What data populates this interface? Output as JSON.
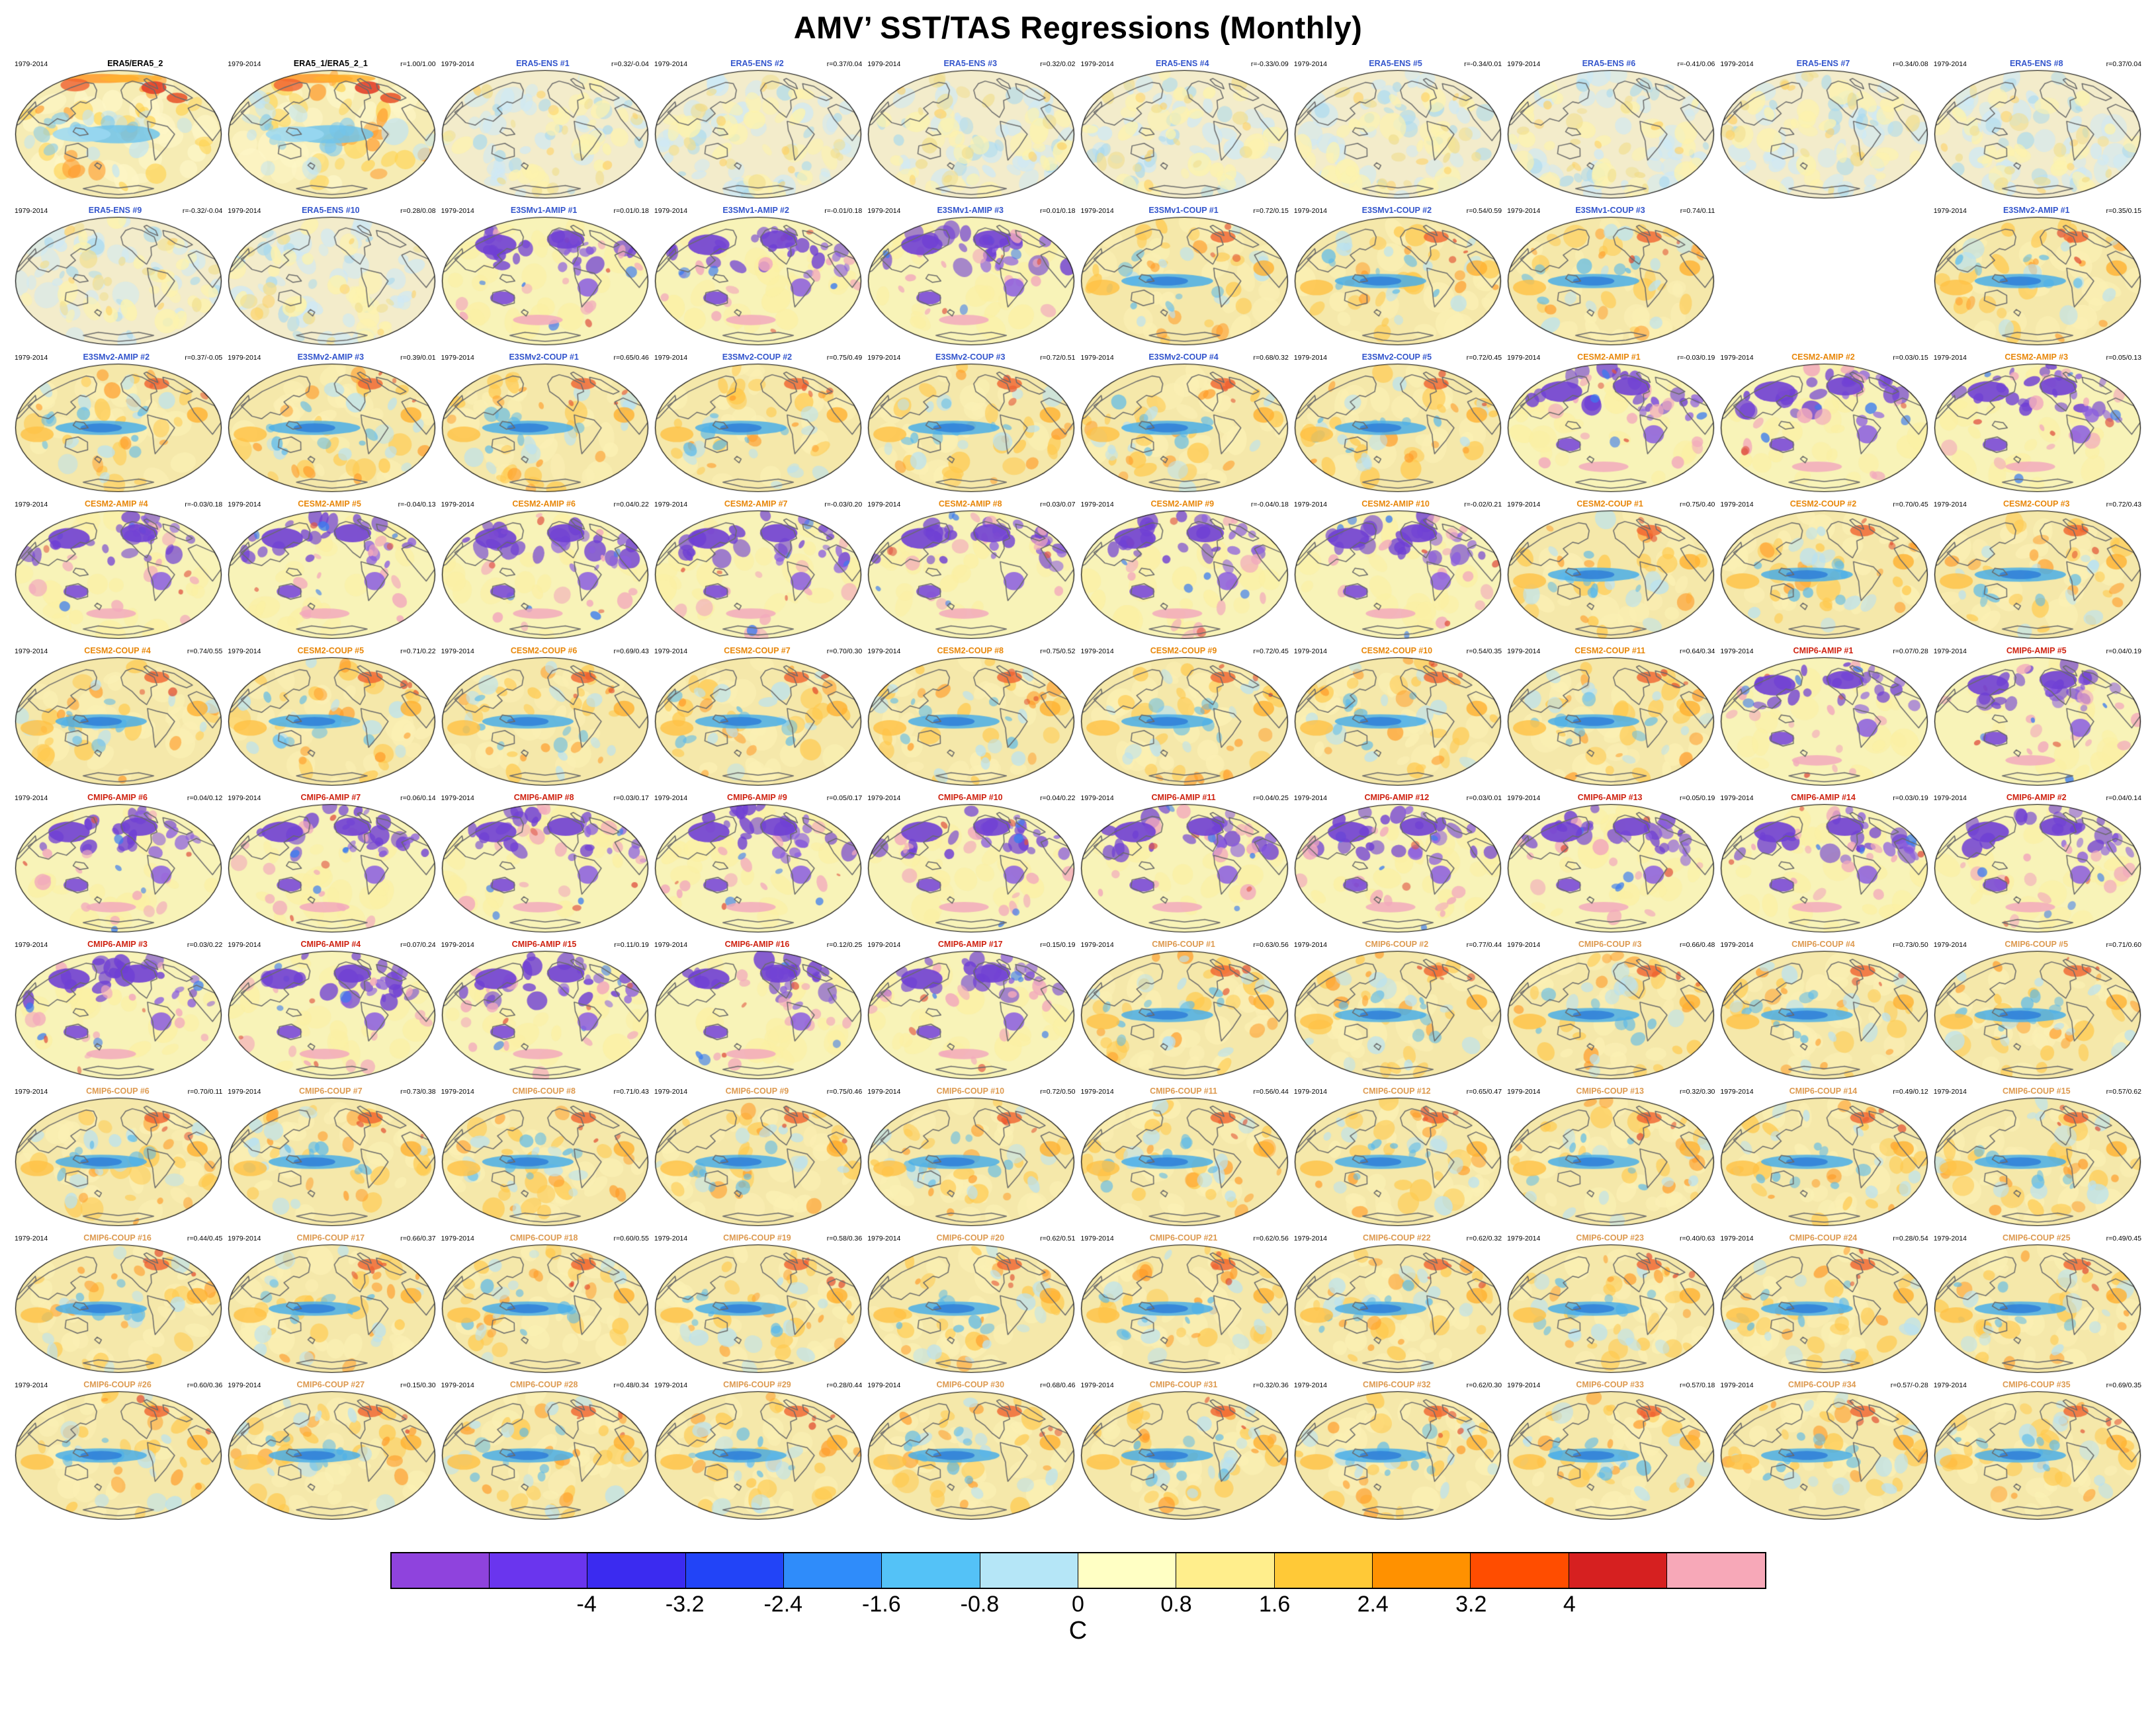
{
  "page_title": "AMV’ SST/TAS Regressions (Monthly)",
  "chart_data": {
    "type": "heatmap",
    "title": "AMV’ SST/TAS Regressions (Monthly)",
    "description": "10x10 grid of global AMV SST/TAS regression maps (Robinson projection), one panel per dataset/ensemble member; panel header shows period, dataset name and r=SST/TAS pattern correlations; shared colorbar in degrees C",
    "grid": {
      "rows": 10,
      "cols": 10
    },
    "years_label": "1979-2014",
    "colorbar": {
      "label": "C",
      "ticks": [
        "-4",
        "-3.2",
        "-2.4",
        "-1.6",
        "-0.8",
        "0",
        "0.8",
        "1.6",
        "2.4",
        "3.2",
        "4"
      ],
      "colors": [
        "#8f43dd",
        "#6a35ee",
        "#3b2bf0",
        "#2244f7",
        "#2f8cfa",
        "#54c2f7",
        "#b5e6f7",
        "#ffffc4",
        "#ffee8c",
        "#ffc937",
        "#ff9100",
        "#ff4d00",
        "#d62020",
        "#f7a8b8"
      ]
    },
    "group_colors": {
      "obs": "#000000",
      "ens": "#3355cc",
      "e3sm": "#3355cc",
      "cesm2": "#e8870a",
      "cmip6a": "#cf2210",
      "cmip6c": "#dd9a50"
    },
    "panels": [
      {
        "title": "ERA5/ERA5_2",
        "r": "",
        "group": "obs",
        "style": "obs"
      },
      {
        "title": "ERA5_1/ERA5_2_1",
        "r": "r=1.00/1.00",
        "group": "obs",
        "style": "obs"
      },
      {
        "title": "ERA5-ENS #1",
        "r": "r=0.32/-0.04",
        "group": "ens",
        "style": "ens"
      },
      {
        "title": "ERA5-ENS #2",
        "r": "r=0.37/0.04",
        "group": "ens",
        "style": "ens"
      },
      {
        "title": "ERA5-ENS #3",
        "r": "r=0.32/0.02",
        "group": "ens",
        "style": "ens"
      },
      {
        "title": "ERA5-ENS #4",
        "r": "r=-0.33/0.09",
        "group": "ens",
        "style": "ens"
      },
      {
        "title": "ERA5-ENS #5",
        "r": "r=-0.34/0.01",
        "group": "ens",
        "style": "ens"
      },
      {
        "title": "ERA5-ENS #6",
        "r": "r=-0.41/0.06",
        "group": "ens",
        "style": "ens"
      },
      {
        "title": "ERA5-ENS #7",
        "r": "r=0.34/0.08",
        "group": "ens",
        "style": "ens"
      },
      {
        "title": "ERA5-ENS #8",
        "r": "r=0.37/0.04",
        "group": "ens",
        "style": "ens"
      },
      {
        "title": "ERA5-ENS #9",
        "r": "r=-0.32/-0.04",
        "group": "ens",
        "style": "ens"
      },
      {
        "title": "ERA5-ENS #10",
        "r": "r=0.28/0.08",
        "group": "ens",
        "style": "ens"
      },
      {
        "title": "E3SMv1-AMIP #1",
        "r": "r=0.01/0.18",
        "group": "e3sm",
        "style": "amip"
      },
      {
        "title": "E3SMv1-AMIP #2",
        "r": "r=-0.01/0.18",
        "group": "e3sm",
        "style": "amip"
      },
      {
        "title": "E3SMv1-AMIP #3",
        "r": "r=0.01/0.18",
        "group": "e3sm",
        "style": "amip"
      },
      {
        "title": "E3SMv1-COUP #1",
        "r": "r=0.72/0.15",
        "group": "e3sm",
        "style": "coup"
      },
      {
        "title": "E3SMv1-COUP #2",
        "r": "r=0.54/0.59",
        "group": "e3sm",
        "style": "coup"
      },
      {
        "title": "E3SMv1-COUP #3",
        "r": "r=0.74/0.11",
        "group": "e3sm",
        "style": "coup"
      },
      null,
      {
        "title": "E3SMv2-AMIP #1",
        "r": "r=0.35/0.15",
        "group": "e3sm",
        "style": "coup"
      },
      {
        "title": "E3SMv2-AMIP #2",
        "r": "r=0.37/-0.05",
        "group": "e3sm",
        "style": "coup"
      },
      {
        "title": "E3SMv2-AMIP #3",
        "r": "r=0.39/0.01",
        "group": "e3sm",
        "style": "coup"
      },
      {
        "title": "E3SMv2-COUP #1",
        "r": "r=0.65/0.46",
        "group": "e3sm",
        "style": "coup"
      },
      {
        "title": "E3SMv2-COUP #2",
        "r": "r=0.75/0.49",
        "group": "e3sm",
        "style": "coup"
      },
      {
        "title": "E3SMv2-COUP #3",
        "r": "r=0.72/0.51",
        "group": "e3sm",
        "style": "coup"
      },
      {
        "title": "E3SMv2-COUP #4",
        "r": "r=0.68/0.32",
        "group": "e3sm",
        "style": "coup"
      },
      {
        "title": "E3SMv2-COUP #5",
        "r": "r=0.72/0.45",
        "group": "e3sm",
        "style": "coup"
      },
      {
        "title": "CESM2-AMIP #1",
        "r": "r=-0.03/0.19",
        "group": "cesm2",
        "style": "amip"
      },
      {
        "title": "CESM2-AMIP #2",
        "r": "r=0.03/0.15",
        "group": "cesm2",
        "style": "amip"
      },
      {
        "title": "CESM2-AMIP #3",
        "r": "r=0.05/0.13",
        "group": "cesm2",
        "style": "amip"
      },
      {
        "title": "CESM2-AMIP #4",
        "r": "r=-0.03/0.18",
        "group": "cesm2",
        "style": "amip"
      },
      {
        "title": "CESM2-AMIP #5",
        "r": "r=-0.04/0.13",
        "group": "cesm2",
        "style": "amip"
      },
      {
        "title": "CESM2-AMIP #6",
        "r": "r=0.04/0.22",
        "group": "cesm2",
        "style": "amip"
      },
      {
        "title": "CESM2-AMIP #7",
        "r": "r=-0.03/0.20",
        "group": "cesm2",
        "style": "amip"
      },
      {
        "title": "CESM2-AMIP #8",
        "r": "r=0.03/0.07",
        "group": "cesm2",
        "style": "amip"
      },
      {
        "title": "CESM2-AMIP #9",
        "r": "r=-0.04/0.18",
        "group": "cesm2",
        "style": "amip"
      },
      {
        "title": "CESM2-AMIP #10",
        "r": "r=-0.02/0.21",
        "group": "cesm2",
        "style": "amip"
      },
      {
        "title": "CESM2-COUP #1",
        "r": "r=0.75/0.40",
        "group": "cesm2",
        "style": "coup"
      },
      {
        "title": "CESM2-COUP #2",
        "r": "r=0.70/0.45",
        "group": "cesm2",
        "style": "coup"
      },
      {
        "title": "CESM2-COUP #3",
        "r": "r=0.72/0.43",
        "group": "cesm2",
        "style": "coup"
      },
      {
        "title": "CESM2-COUP #4",
        "r": "r=0.74/0.55",
        "group": "cesm2",
        "style": "coup"
      },
      {
        "title": "CESM2-COUP #5",
        "r": "r=0.71/0.22",
        "group": "cesm2",
        "style": "coup"
      },
      {
        "title": "CESM2-COUP #6",
        "r": "r=0.69/0.43",
        "group": "cesm2",
        "style": "coup"
      },
      {
        "title": "CESM2-COUP #7",
        "r": "r=0.70/0.30",
        "group": "cesm2",
        "style": "coup"
      },
      {
        "title": "CESM2-COUP #8",
        "r": "r=0.75/0.52",
        "group": "cesm2",
        "style": "coup"
      },
      {
        "title": "CESM2-COUP #9",
        "r": "r=0.72/0.45",
        "group": "cesm2",
        "style": "coup"
      },
      {
        "title": "CESM2-COUP #10",
        "r": "r=0.54/0.35",
        "group": "cesm2",
        "style": "coup"
      },
      {
        "title": "CESM2-COUP #11",
        "r": "r=0.64/0.34",
        "group": "cesm2",
        "style": "coup"
      },
      {
        "title": "CMIP6-AMIP #1",
        "r": "r=0.07/0.28",
        "group": "cmip6a",
        "style": "amip"
      },
      {
        "title": "CMIP6-AMIP #5",
        "r": "r=0.04/0.19",
        "group": "cmip6a",
        "style": "amip"
      },
      {
        "title": "CMIP6-AMIP #6",
        "r": "r=0.04/0.12",
        "group": "cmip6a",
        "style": "amip"
      },
      {
        "title": "CMIP6-AMIP #7",
        "r": "r=0.06/0.14",
        "group": "cmip6a",
        "style": "amip"
      },
      {
        "title": "CMIP6-AMIP #8",
        "r": "r=0.03/0.17",
        "group": "cmip6a",
        "style": "amip"
      },
      {
        "title": "CMIP6-AMIP #9",
        "r": "r=0.05/0.17",
        "group": "cmip6a",
        "style": "amip"
      },
      {
        "title": "CMIP6-AMIP #10",
        "r": "r=0.04/0.22",
        "group": "cmip6a",
        "style": "amip"
      },
      {
        "title": "CMIP6-AMIP #11",
        "r": "r=0.04/0.25",
        "group": "cmip6a",
        "style": "amip"
      },
      {
        "title": "CMIP6-AMIP #12",
        "r": "r=0.03/0.01",
        "group": "cmip6a",
        "style": "amip"
      },
      {
        "title": "CMIP6-AMIP #13",
        "r": "r=0.05/0.19",
        "group": "cmip6a",
        "style": "amip"
      },
      {
        "title": "CMIP6-AMIP #14",
        "r": "r=0.03/0.19",
        "group": "cmip6a",
        "style": "amip"
      },
      {
        "title": "CMIP6-AMIP #2",
        "r": "r=0.04/0.14",
        "group": "cmip6a",
        "style": "amip"
      },
      {
        "title": "CMIP6-AMIP #3",
        "r": "r=0.03/0.22",
        "group": "cmip6a",
        "style": "amip"
      },
      {
        "title": "CMIP6-AMIP #4",
        "r": "r=0.07/0.24",
        "group": "cmip6a",
        "style": "amip"
      },
      {
        "title": "CMIP6-AMIP #15",
        "r": "r=0.11/0.19",
        "group": "cmip6a",
        "style": "amip"
      },
      {
        "title": "CMIP6-AMIP #16",
        "r": "r=0.12/0.25",
        "group": "cmip6a",
        "style": "amip"
      },
      {
        "title": "CMIP6-AMIP #17",
        "r": "r=0.15/0.19",
        "group": "cmip6a",
        "style": "amip"
      },
      {
        "title": "CMIP6-COUP #1",
        "r": "r=0.63/0.56",
        "group": "cmip6c",
        "style": "coup"
      },
      {
        "title": "CMIP6-COUP #2",
        "r": "r=0.77/0.44",
        "group": "cmip6c",
        "style": "coup"
      },
      {
        "title": "CMIP6-COUP #3",
        "r": "r=0.66/0.48",
        "group": "cmip6c",
        "style": "coup"
      },
      {
        "title": "CMIP6-COUP #4",
        "r": "r=0.73/0.50",
        "group": "cmip6c",
        "style": "coup"
      },
      {
        "title": "CMIP6-COUP #5",
        "r": "r=0.71/0.60",
        "group": "cmip6c",
        "style": "coup"
      },
      {
        "title": "CMIP6-COUP #6",
        "r": "r=0.70/0.11",
        "group": "cmip6c",
        "style": "coup"
      },
      {
        "title": "CMIP6-COUP #7",
        "r": "r=0.73/0.38",
        "group": "cmip6c",
        "style": "coup"
      },
      {
        "title": "CMIP6-COUP #8",
        "r": "r=0.71/0.43",
        "group": "cmip6c",
        "style": "coup"
      },
      {
        "title": "CMIP6-COUP #9",
        "r": "r=0.75/0.46",
        "group": "cmip6c",
        "style": "coup"
      },
      {
        "title": "CMIP6-COUP #10",
        "r": "r=0.72/0.50",
        "group": "cmip6c",
        "style": "coup"
      },
      {
        "title": "CMIP6-COUP #11",
        "r": "r=0.56/0.44",
        "group": "cmip6c",
        "style": "coup"
      },
      {
        "title": "CMIP6-COUP #12",
        "r": "r=0.65/0.47",
        "group": "cmip6c",
        "style": "coup"
      },
      {
        "title": "CMIP6-COUP #13",
        "r": "r=0.32/0.30",
        "group": "cmip6c",
        "style": "coup"
      },
      {
        "title": "CMIP6-COUP #14",
        "r": "r=0.49/0.12",
        "group": "cmip6c",
        "style": "coup"
      },
      {
        "title": "CMIP6-COUP #15",
        "r": "r=0.57/0.62",
        "group": "cmip6c",
        "style": "coup"
      },
      {
        "title": "CMIP6-COUP #16",
        "r": "r=0.44/0.45",
        "group": "cmip6c",
        "style": "coup"
      },
      {
        "title": "CMIP6-COUP #17",
        "r": "r=0.66/0.37",
        "group": "cmip6c",
        "style": "coup"
      },
      {
        "title": "CMIP6-COUP #18",
        "r": "r=0.60/0.55",
        "group": "cmip6c",
        "style": "coup"
      },
      {
        "title": "CMIP6-COUP #19",
        "r": "r=0.58/0.36",
        "group": "cmip6c",
        "style": "coup"
      },
      {
        "title": "CMIP6-COUP #20",
        "r": "r=0.62/0.51",
        "group": "cmip6c",
        "style": "coup"
      },
      {
        "title": "CMIP6-COUP #21",
        "r": "r=0.62/0.56",
        "group": "cmip6c",
        "style": "coup"
      },
      {
        "title": "CMIP6-COUP #22",
        "r": "r=0.62/0.32",
        "group": "cmip6c",
        "style": "coup"
      },
      {
        "title": "CMIP6-COUP #23",
        "r": "r=0.40/0.63",
        "group": "cmip6c",
        "style": "coup"
      },
      {
        "title": "CMIP6-COUP #24",
        "r": "r=0.28/0.54",
        "group": "cmip6c",
        "style": "coup"
      },
      {
        "title": "CMIP6-COUP #25",
        "r": "r=0.49/0.45",
        "group": "cmip6c",
        "style": "coup"
      },
      {
        "title": "CMIP6-COUP #26",
        "r": "r=0.60/0.36",
        "group": "cmip6c",
        "style": "coup"
      },
      {
        "title": "CMIP6-COUP #27",
        "r": "r=0.15/0.30",
        "group": "cmip6c",
        "style": "coup"
      },
      {
        "title": "CMIP6-COUP #28",
        "r": "r=0.48/0.34",
        "group": "cmip6c",
        "style": "coup"
      },
      {
        "title": "CMIP6-COUP #29",
        "r": "r=0.28/0.44",
        "group": "cmip6c",
        "style": "coup"
      },
      {
        "title": "CMIP6-COUP #30",
        "r": "r=0.68/0.46",
        "group": "cmip6c",
        "style": "coup"
      },
      {
        "title": "CMIP6-COUP #31",
        "r": "r=0.32/0.36",
        "group": "cmip6c",
        "style": "coup"
      },
      {
        "title": "CMIP6-COUP #32",
        "r": "r=0.62/0.30",
        "group": "cmip6c",
        "style": "coup"
      },
      {
        "title": "CMIP6-COUP #33",
        "r": "r=0.57/0.18",
        "group": "cmip6c",
        "style": "coup"
      },
      {
        "title": "CMIP6-COUP #34",
        "r": "r=0.57/-0.28",
        "group": "cmip6c",
        "style": "coup"
      },
      {
        "title": "CMIP6-COUP #35",
        "r": "r=0.69/0.35",
        "group": "cmip6c",
        "style": "coup"
      }
    ]
  }
}
